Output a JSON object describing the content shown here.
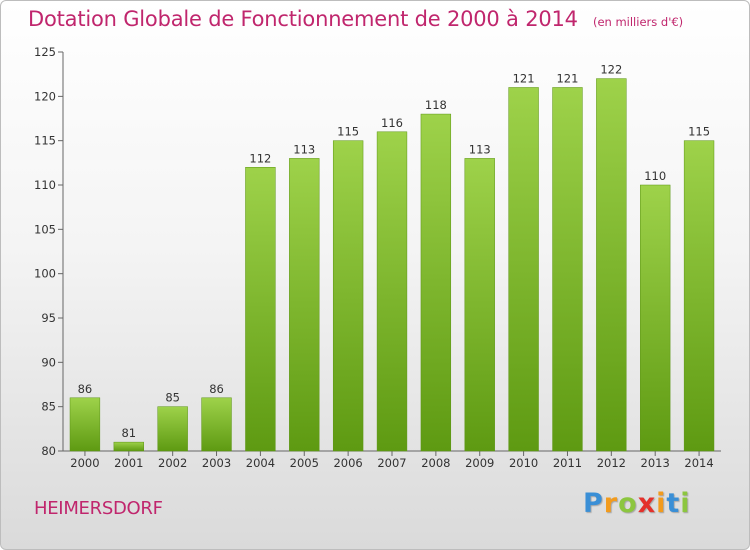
{
  "chart_data": {
    "type": "bar",
    "title": "Dotation Globale de Fonctionnement de 2000 à 2014",
    "unit": "(en milliers d'€)",
    "categories": [
      "2000",
      "2001",
      "2002",
      "2003",
      "2004",
      "2005",
      "2006",
      "2007",
      "2008",
      "2009",
      "2010",
      "2011",
      "2012",
      "2013",
      "2014"
    ],
    "values": [
      86,
      81,
      85,
      86,
      112,
      113,
      115,
      116,
      118,
      113,
      121,
      121,
      122,
      110,
      115
    ],
    "ylim": [
      80,
      125
    ],
    "yticks": [
      80,
      85,
      90,
      95,
      100,
      105,
      110,
      115,
      120,
      125
    ],
    "xlabel": "",
    "ylabel": "",
    "grid": false,
    "colors": {
      "bar_light": "#9ed24a",
      "bar_dark": "#5e9a12",
      "title": "#c0266d"
    }
  },
  "commune": "HEIMERSDORF",
  "logo": {
    "letters": [
      "P",
      "r",
      "o",
      "x",
      "i",
      "t",
      "i"
    ],
    "colors": [
      "#3a8fd6",
      "#f29b1d",
      "#8cc63f",
      "#e4312b",
      "#f29b1d",
      "#3a8fd6",
      "#8cc63f"
    ]
  }
}
